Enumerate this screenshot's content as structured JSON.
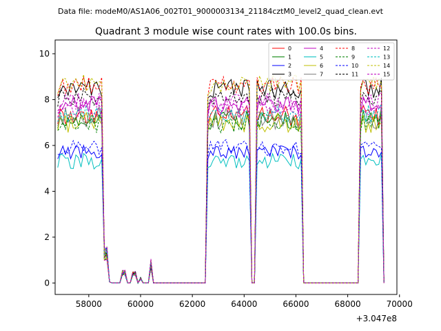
{
  "chart_data": {
    "type": "line",
    "suptitle": "Data file: modeM0/AS1A06_002T01_9000003134_21184cztM0_level2_quad_clean.evt",
    "title": "Quadrant 3 module wise count rates with 100.0s bins.",
    "xlabel": "",
    "ylabel": "",
    "x_offset_label": "+3.047e8",
    "xlim": [
      56700,
      69900
    ],
    "ylim": [
      -0.5,
      10.6
    ],
    "x_ticks": [
      58000,
      60000,
      62000,
      64000,
      66000,
      68000,
      70000
    ],
    "x_tick_labels": [
      "58000",
      "60000",
      "62000",
      "64000",
      "66000",
      "68000",
      "70000"
    ],
    "y_ticks": [
      0,
      2,
      4,
      6,
      8,
      10
    ],
    "y_tick_labels": [
      "0",
      "2",
      "4",
      "6",
      "8",
      "10"
    ],
    "grid": false,
    "legend_placement": "top-right",
    "segments": [
      {
        "start": 56800,
        "end": 58550
      },
      {
        "start": 62600,
        "end": 64250
      },
      {
        "start": 64450,
        "end": 66250
      },
      {
        "start": 68450,
        "end": 69350
      }
    ],
    "gap_bumps": [
      {
        "x": 58650,
        "y": 1.3
      },
      {
        "x": 59350,
        "y": 0.45
      },
      {
        "x": 59750,
        "y": 0.4
      },
      {
        "x": 60000,
        "y": 0.2
      },
      {
        "x": 60400,
        "y": 0.85
      }
    ],
    "series": [
      {
        "name": "0",
        "color": "#ff0000",
        "dash": false,
        "level": 7.3,
        "noise": 0.45
      },
      {
        "name": "1",
        "color": "#008000",
        "dash": false,
        "level": 7.1,
        "noise": 0.45
      },
      {
        "name": "2",
        "color": "#0000ff",
        "dash": false,
        "level": 5.7,
        "noise": 0.3
      },
      {
        "name": "3",
        "color": "#000000",
        "dash": false,
        "level": 8.5,
        "noise": 0.45
      },
      {
        "name": "4",
        "color": "#bf00bf",
        "dash": false,
        "level": 7.8,
        "noise": 0.4
      },
      {
        "name": "5",
        "color": "#00bfbf",
        "dash": false,
        "level": 5.3,
        "noise": 0.35
      },
      {
        "name": "6",
        "color": "#bfbf00",
        "dash": false,
        "level": 7.0,
        "noise": 0.45
      },
      {
        "name": "7",
        "color": "#808080",
        "dash": false,
        "level": 7.2,
        "noise": 0.5
      },
      {
        "name": "8",
        "color": "#ff0000",
        "dash": true,
        "level": 8.6,
        "noise": 0.4
      },
      {
        "name": "9",
        "color": "#008000",
        "dash": true,
        "level": 7.0,
        "noise": 0.45
      },
      {
        "name": "10",
        "color": "#0000ff",
        "dash": true,
        "level": 5.9,
        "noise": 0.35
      },
      {
        "name": "11",
        "color": "#000000",
        "dash": true,
        "level": 8.1,
        "noise": 0.4
      },
      {
        "name": "12",
        "color": "#bf00bf",
        "dash": true,
        "level": 7.6,
        "noise": 0.4
      },
      {
        "name": "13",
        "color": "#00bfbf",
        "dash": true,
        "level": 7.4,
        "noise": 0.4
      },
      {
        "name": "14",
        "color": "#bfbf00",
        "dash": true,
        "level": 8.7,
        "noise": 0.4
      },
      {
        "name": "15",
        "color": "#bf00bf",
        "dash": true,
        "level": 7.9,
        "noise": 0.4
      }
    ]
  }
}
